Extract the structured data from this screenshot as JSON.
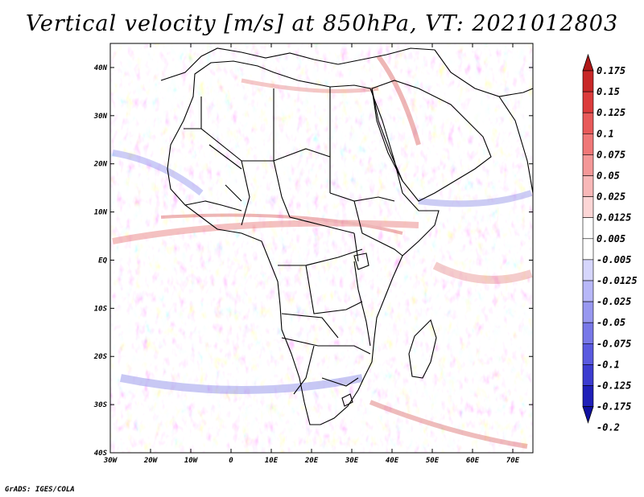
{
  "title": "Vertical velocity [m/s] at 850hPa, VT: 2021012803",
  "footer": "GrADS: IGES/COLA",
  "lat_labels": [
    "40N",
    "30N",
    "20N",
    "10N",
    "EQ",
    "10S",
    "20S",
    "30S",
    "40S"
  ],
  "lat_values": [
    40,
    30,
    20,
    10,
    0,
    -10,
    -20,
    -30,
    -40
  ],
  "lon_labels": [
    "30W",
    "20W",
    "10W",
    "0",
    "10E",
    "20E",
    "30E",
    "40E",
    "50E",
    "60E",
    "70E"
  ],
  "lon_values": [
    -30,
    -20,
    -10,
    0,
    10,
    20,
    30,
    40,
    50,
    60,
    70
  ],
  "map_extent": {
    "lon_min": -30,
    "lon_max": 75,
    "lat_min": -40,
    "lat_max": 45
  },
  "colorbar": {
    "labels": [
      "0.175",
      "0.15",
      "0.125",
      "0.1",
      "0.075",
      "0.05",
      "0.025",
      "0.0125",
      "0.005",
      "-0.005",
      "-0.0125",
      "-0.025",
      "-0.05",
      "-0.075",
      "-0.1",
      "-0.125",
      "-0.175",
      "-0.2"
    ],
    "colors": [
      "#b01818",
      "#c82828",
      "#dc3c3c",
      "#e85a5a",
      "#f07878",
      "#f49898",
      "#f8b8b8",
      "#fcd6d6",
      "#ffffff",
      "#ffffff",
      "#d6d6fc",
      "#b8b8f8",
      "#9898f0",
      "#7878e8",
      "#5a5ae0",
      "#3c3cd0",
      "#2020b8",
      "#1010a0"
    ]
  }
}
